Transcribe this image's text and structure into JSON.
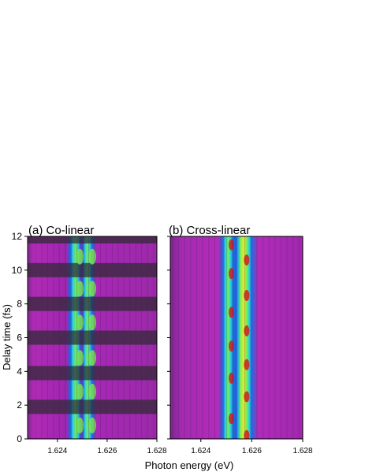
{
  "chart_data": [
    {
      "type": "heatmap",
      "title": "(a) Co-linear",
      "xlabel": "Photon energy (eV)",
      "ylabel": "Delay time (fs)",
      "xlim": [
        1.6228,
        1.628
      ],
      "ylim": [
        0,
        12
      ],
      "x_ticks": [
        "1.624",
        "1.626",
        "1.628"
      ],
      "y_ticks": [
        "0",
        "2",
        "4",
        "6",
        "8",
        "10",
        "12"
      ],
      "peaks_eV": [
        1.6249,
        1.6254
      ],
      "bright_bands_fs": [
        0.8,
        2.8,
        4.8,
        6.9,
        8.9,
        10.8
      ],
      "dark_bands_fs": [
        1.9,
        3.9,
        6.0,
        8.0,
        10.0,
        12.0
      ],
      "colormap": [
        "#2a2a2a",
        "#6a1d73",
        "#b021c9",
        "#1f6de0",
        "#27d3e3",
        "#7cf24a",
        "#f2e23a",
        "#d41c1c"
      ]
    },
    {
      "type": "heatmap",
      "title": "(b) Cross-linear",
      "xlabel": "Photon energy (eV)",
      "ylabel": "Delay time (fs)",
      "xlim": [
        1.6228,
        1.628
      ],
      "ylim": [
        0,
        12
      ],
      "x_ticks": [
        "1.624",
        "1.626",
        "1.628"
      ],
      "y_ticks": [
        "0",
        "2",
        "4",
        "6",
        "8",
        "10",
        "12"
      ],
      "peaks_eV": [
        1.6252,
        1.6258
      ],
      "hot_spots_fs": [
        0.2,
        1.2,
        2.5,
        3.6,
        4.4,
        5.5,
        6.4,
        7.5,
        8.5,
        9.8,
        10.6,
        11.5
      ],
      "colormap": [
        "#2a2a2a",
        "#6a1d73",
        "#b021c9",
        "#1f6de0",
        "#27d3e3",
        "#7cf24a",
        "#f2e23a",
        "#d41c1c"
      ]
    }
  ],
  "labels": {
    "panel_a_title": "(a) Co-linear",
    "panel_b_title": "(b) Cross-linear",
    "xlabel": "Photon energy (eV)",
    "ylabel": "Delay time (fs)"
  }
}
